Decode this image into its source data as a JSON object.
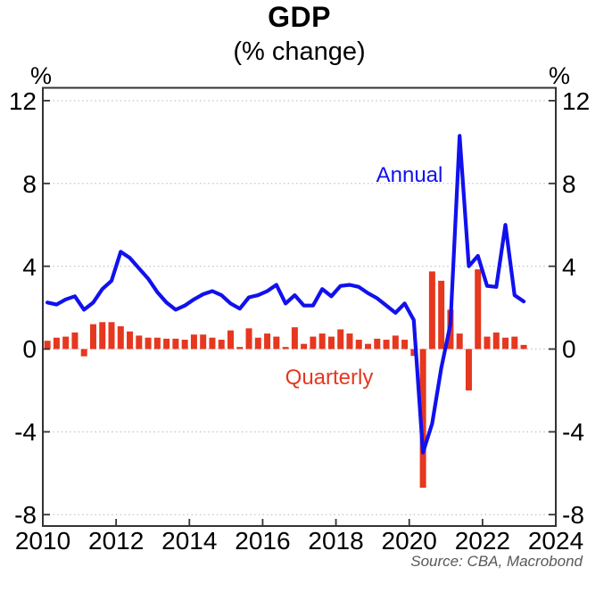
{
  "title": "GDP",
  "subtitle": "(% change)",
  "axis_unit": "%",
  "series_labels": {
    "annual": "Annual",
    "quarterly": "Quarterly"
  },
  "source": "Source: CBA, Macrobond",
  "colors": {
    "annual_line": "#1111ee",
    "quarterly_bar": "#e6371f",
    "grid": "#c4c4c4",
    "frame": "#333333",
    "text": "#000000",
    "source_text": "#595959"
  },
  "chart_data": {
    "type": "line+bar",
    "title": "GDP",
    "subtitle": "(% change)",
    "ylabel": "%",
    "legend_position": "inline-text-labels",
    "grid": "horizontal-dotted",
    "xlim": [
      2010,
      2024
    ],
    "ylim": [
      -8.55,
      12.62
    ],
    "x_ticks": [
      2010,
      2012,
      2014,
      2016,
      2018,
      2020,
      2022,
      2024
    ],
    "y_ticks": [
      -8,
      -4,
      0,
      4,
      8,
      12
    ],
    "x_quarters": [
      "2010 Q1",
      "2010 Q2",
      "2010 Q3",
      "2010 Q4",
      "2011 Q1",
      "2011 Q2",
      "2011 Q3",
      "2011 Q4",
      "2012 Q1",
      "2012 Q2",
      "2012 Q3",
      "2012 Q4",
      "2013 Q1",
      "2013 Q2",
      "2013 Q3",
      "2013 Q4",
      "2014 Q1",
      "2014 Q2",
      "2014 Q3",
      "2014 Q4",
      "2015 Q1",
      "2015 Q2",
      "2015 Q3",
      "2015 Q4",
      "2016 Q1",
      "2016 Q2",
      "2016 Q3",
      "2016 Q4",
      "2017 Q1",
      "2017 Q2",
      "2017 Q3",
      "2017 Q4",
      "2018 Q1",
      "2018 Q2",
      "2018 Q3",
      "2018 Q4",
      "2019 Q1",
      "2019 Q2",
      "2019 Q3",
      "2019 Q4",
      "2020 Q1",
      "2020 Q2",
      "2020 Q3",
      "2020 Q4",
      "2021 Q1",
      "2021 Q2",
      "2021 Q3",
      "2021 Q4",
      "2022 Q1",
      "2022 Q2",
      "2022 Q3",
      "2022 Q4",
      "2023 Q1"
    ],
    "series": [
      {
        "name": "Annual",
        "type": "line",
        "color": "#1111ee",
        "values": [
          2.25,
          2.15,
          2.4,
          2.55,
          1.9,
          2.25,
          2.9,
          3.3,
          4.7,
          4.4,
          3.9,
          3.4,
          2.75,
          2.25,
          1.9,
          2.1,
          2.4,
          2.65,
          2.8,
          2.6,
          2.2,
          1.95,
          2.5,
          2.6,
          2.8,
          3.1,
          2.2,
          2.6,
          2.1,
          2.1,
          2.9,
          2.55,
          3.05,
          3.1,
          3.0,
          2.7,
          2.45,
          2.1,
          1.75,
          2.2,
          1.4,
          -5.0,
          -3.6,
          -0.9,
          1.2,
          10.3,
          4.0,
          4.5,
          3.05,
          3.0,
          6.0,
          2.6,
          2.3
        ]
      },
      {
        "name": "Quarterly",
        "type": "bar",
        "color": "#e6371f",
        "values": [
          0.4,
          0.55,
          0.6,
          0.8,
          -0.35,
          1.2,
          1.3,
          1.3,
          1.1,
          0.85,
          0.65,
          0.55,
          0.55,
          0.5,
          0.5,
          0.45,
          0.7,
          0.7,
          0.55,
          0.45,
          0.9,
          0.1,
          1.0,
          0.55,
          0.75,
          0.6,
          0.1,
          1.05,
          0.25,
          0.6,
          0.75,
          0.6,
          0.95,
          0.75,
          0.45,
          0.25,
          0.5,
          0.45,
          0.65,
          0.45,
          -0.33,
          -6.7,
          3.75,
          3.3,
          1.9,
          0.75,
          -2.0,
          3.85,
          0.6,
          0.8,
          0.55,
          0.6,
          0.2
        ]
      }
    ]
  }
}
